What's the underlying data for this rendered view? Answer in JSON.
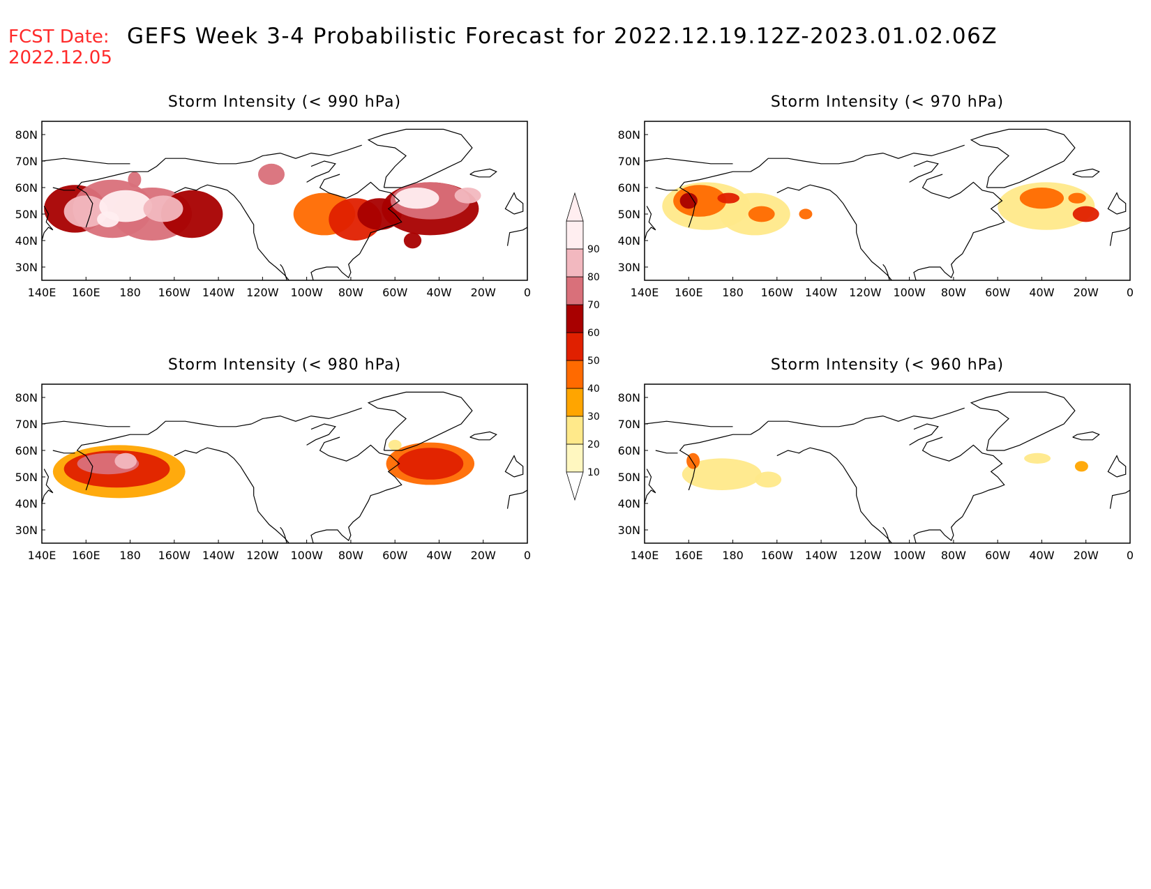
{
  "header": {
    "fcst_label": "FCST Date:",
    "fcst_date": "2022.12.05",
    "title": "GEFS Week 3-4 Probabilistic Forecast for 2022.12.19.12Z-2023.01.02.06Z"
  },
  "axes": {
    "lon_labels": [
      "140E",
      "160E",
      "180",
      "160W",
      "140W",
      "120W",
      "100W",
      "80W",
      "60W",
      "40W",
      "20W",
      "0"
    ],
    "lat_labels": [
      "30N",
      "40N",
      "50N",
      "60N",
      "70N",
      "80N"
    ],
    "lon_range": [
      140,
      360
    ],
    "lat_range": [
      25,
      85
    ]
  },
  "colorbar": {
    "levels": [
      "10",
      "20",
      "30",
      "40",
      "50",
      "60",
      "70",
      "80",
      "90"
    ],
    "colors": [
      "#fff7c0",
      "#ffe98a",
      "#ffa500",
      "#ff6a00",
      "#e02000",
      "#a80000",
      "#d9707a",
      "#f2b8bf",
      "#ffeef0"
    ]
  },
  "panels": [
    {
      "title": "Storm Intensity (< 990 hPa)",
      "blobs": [
        {
          "lon": 155,
          "lat": 52,
          "rx": 14,
          "ry": 9,
          "level": 5
        },
        {
          "lon": 172,
          "lat": 52,
          "rx": 18,
          "ry": 11,
          "level": 6
        },
        {
          "lon": 190,
          "lat": 50,
          "rx": 18,
          "ry": 10,
          "level": 6
        },
        {
          "lon": 208,
          "lat": 50,
          "rx": 14,
          "ry": 9,
          "level": 5
        },
        {
          "lon": 160,
          "lat": 51,
          "rx": 10,
          "ry": 6,
          "level": 7
        },
        {
          "lon": 178,
          "lat": 53,
          "rx": 12,
          "ry": 6,
          "level": 8
        },
        {
          "lon": 195,
          "lat": 52,
          "rx": 9,
          "ry": 5,
          "level": 7
        },
        {
          "lon": 170,
          "lat": 48,
          "rx": 5,
          "ry": 3,
          "level": 8
        },
        {
          "lon": 182,
          "lat": 63,
          "rx": 3,
          "ry": 3,
          "level": 6
        },
        {
          "lon": 244,
          "lat": 65,
          "rx": 6,
          "ry": 4,
          "level": 6
        },
        {
          "lon": 268,
          "lat": 50,
          "rx": 14,
          "ry": 8,
          "level": 3
        },
        {
          "lon": 282,
          "lat": 48,
          "rx": 12,
          "ry": 8,
          "level": 4
        },
        {
          "lon": 293,
          "lat": 50,
          "rx": 10,
          "ry": 6,
          "level": 5
        },
        {
          "lon": 316,
          "lat": 52,
          "rx": 22,
          "ry": 10,
          "level": 5
        },
        {
          "lon": 316,
          "lat": 55,
          "rx": 18,
          "ry": 7,
          "level": 6
        },
        {
          "lon": 310,
          "lat": 56,
          "rx": 10,
          "ry": 4,
          "level": 8
        },
        {
          "lon": 333,
          "lat": 57,
          "rx": 6,
          "ry": 3,
          "level": 7
        },
        {
          "lon": 308,
          "lat": 40,
          "rx": 4,
          "ry": 3,
          "level": 5
        }
      ]
    },
    {
      "title": "Storm Intensity (< 970 hPa)",
      "blobs": [
        {
          "lon": 168,
          "lat": 53,
          "rx": 20,
          "ry": 9,
          "level": 1
        },
        {
          "lon": 190,
          "lat": 50,
          "rx": 16,
          "ry": 8,
          "level": 1
        },
        {
          "lon": 165,
          "lat": 55,
          "rx": 12,
          "ry": 6,
          "level": 3
        },
        {
          "lon": 160,
          "lat": 55,
          "rx": 4,
          "ry": 3,
          "level": 5
        },
        {
          "lon": 178,
          "lat": 56,
          "rx": 5,
          "ry": 2,
          "level": 4
        },
        {
          "lon": 193,
          "lat": 50,
          "rx": 6,
          "ry": 3,
          "level": 3
        },
        {
          "lon": 213,
          "lat": 50,
          "rx": 3,
          "ry": 2,
          "level": 3
        },
        {
          "lon": 322,
          "lat": 53,
          "rx": 22,
          "ry": 9,
          "level": 1
        },
        {
          "lon": 320,
          "lat": 56,
          "rx": 10,
          "ry": 4,
          "level": 3
        },
        {
          "lon": 340,
          "lat": 50,
          "rx": 6,
          "ry": 3,
          "level": 4
        },
        {
          "lon": 336,
          "lat": 56,
          "rx": 4,
          "ry": 2,
          "level": 3
        }
      ]
    },
    {
      "title": "Storm Intensity (< 980 hPa)",
      "blobs": [
        {
          "lon": 175,
          "lat": 52,
          "rx": 30,
          "ry": 10,
          "level": 2
        },
        {
          "lon": 174,
          "lat": 53,
          "rx": 24,
          "ry": 7,
          "level": 4
        },
        {
          "lon": 170,
          "lat": 55,
          "rx": 14,
          "ry": 4,
          "level": 6
        },
        {
          "lon": 178,
          "lat": 56,
          "rx": 5,
          "ry": 3,
          "level": 7
        },
        {
          "lon": 316,
          "lat": 55,
          "rx": 20,
          "ry": 8,
          "level": 3
        },
        {
          "lon": 316,
          "lat": 55,
          "rx": 15,
          "ry": 6,
          "level": 4
        },
        {
          "lon": 300,
          "lat": 62,
          "rx": 3,
          "ry": 2,
          "level": 1
        }
      ]
    },
    {
      "title": "Storm Intensity (< 960 hPa)",
      "blobs": [
        {
          "lon": 175,
          "lat": 51,
          "rx": 18,
          "ry": 6,
          "level": 1
        },
        {
          "lon": 162,
          "lat": 56,
          "rx": 3,
          "ry": 3,
          "level": 3
        },
        {
          "lon": 196,
          "lat": 49,
          "rx": 6,
          "ry": 3,
          "level": 1
        },
        {
          "lon": 338,
          "lat": 54,
          "rx": 3,
          "ry": 2,
          "level": 2
        },
        {
          "lon": 318,
          "lat": 57,
          "rx": 6,
          "ry": 2,
          "level": 1
        }
      ]
    }
  ]
}
